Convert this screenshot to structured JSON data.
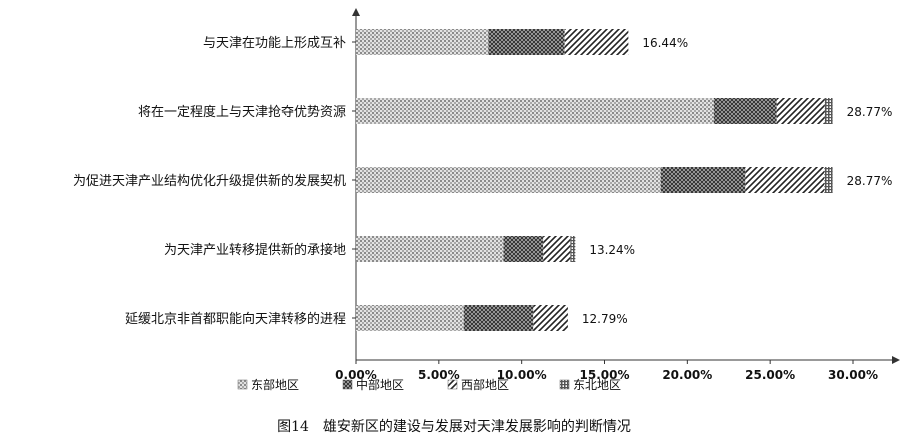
{
  "chart_data": {
    "type": "bar",
    "orientation": "horizontal",
    "stacked": true,
    "categories": [
      "与天津在功能上形成互补",
      "将在一定程度上与天津抢夺优势资源",
      "为促进天津产业结构优化升级提供新的发展契机",
      "为天津产业转移提供新的承接地",
      "延缓北京非首都职能向天津转移的进程"
    ],
    "series": [
      {
        "name": "东部地区",
        "values": [
          8.0,
          21.6,
          18.4,
          8.9,
          6.5
        ],
        "pattern": "dots",
        "color": "#9a9a9a"
      },
      {
        "name": "中部地区",
        "values": [
          4.6,
          3.8,
          5.1,
          2.4,
          4.2
        ],
        "pattern": "crosshatch",
        "color": "#555555"
      },
      {
        "name": "西部地区",
        "values": [
          3.84,
          2.9,
          4.77,
          1.64,
          2.09
        ],
        "pattern": "diagonal",
        "color": "#333333"
      },
      {
        "name": "东北地区",
        "values": [
          0.0,
          0.47,
          0.5,
          0.3,
          0.0
        ],
        "pattern": "grid",
        "color": "#666666"
      }
    ],
    "totals": [
      "16.44%",
      "28.77%",
      "28.77%",
      "13.24%",
      "12.79%"
    ],
    "xlim": [
      0,
      30
    ],
    "xticks": [
      "0.00%",
      "5.00%",
      "10.00%",
      "15.00%",
      "20.00%",
      "25.00%",
      "30.00%"
    ],
    "legend_position": "bottom",
    "grid": false
  },
  "caption": "图14　雄安新区的建设与发展对天津发展影响的判断情况"
}
